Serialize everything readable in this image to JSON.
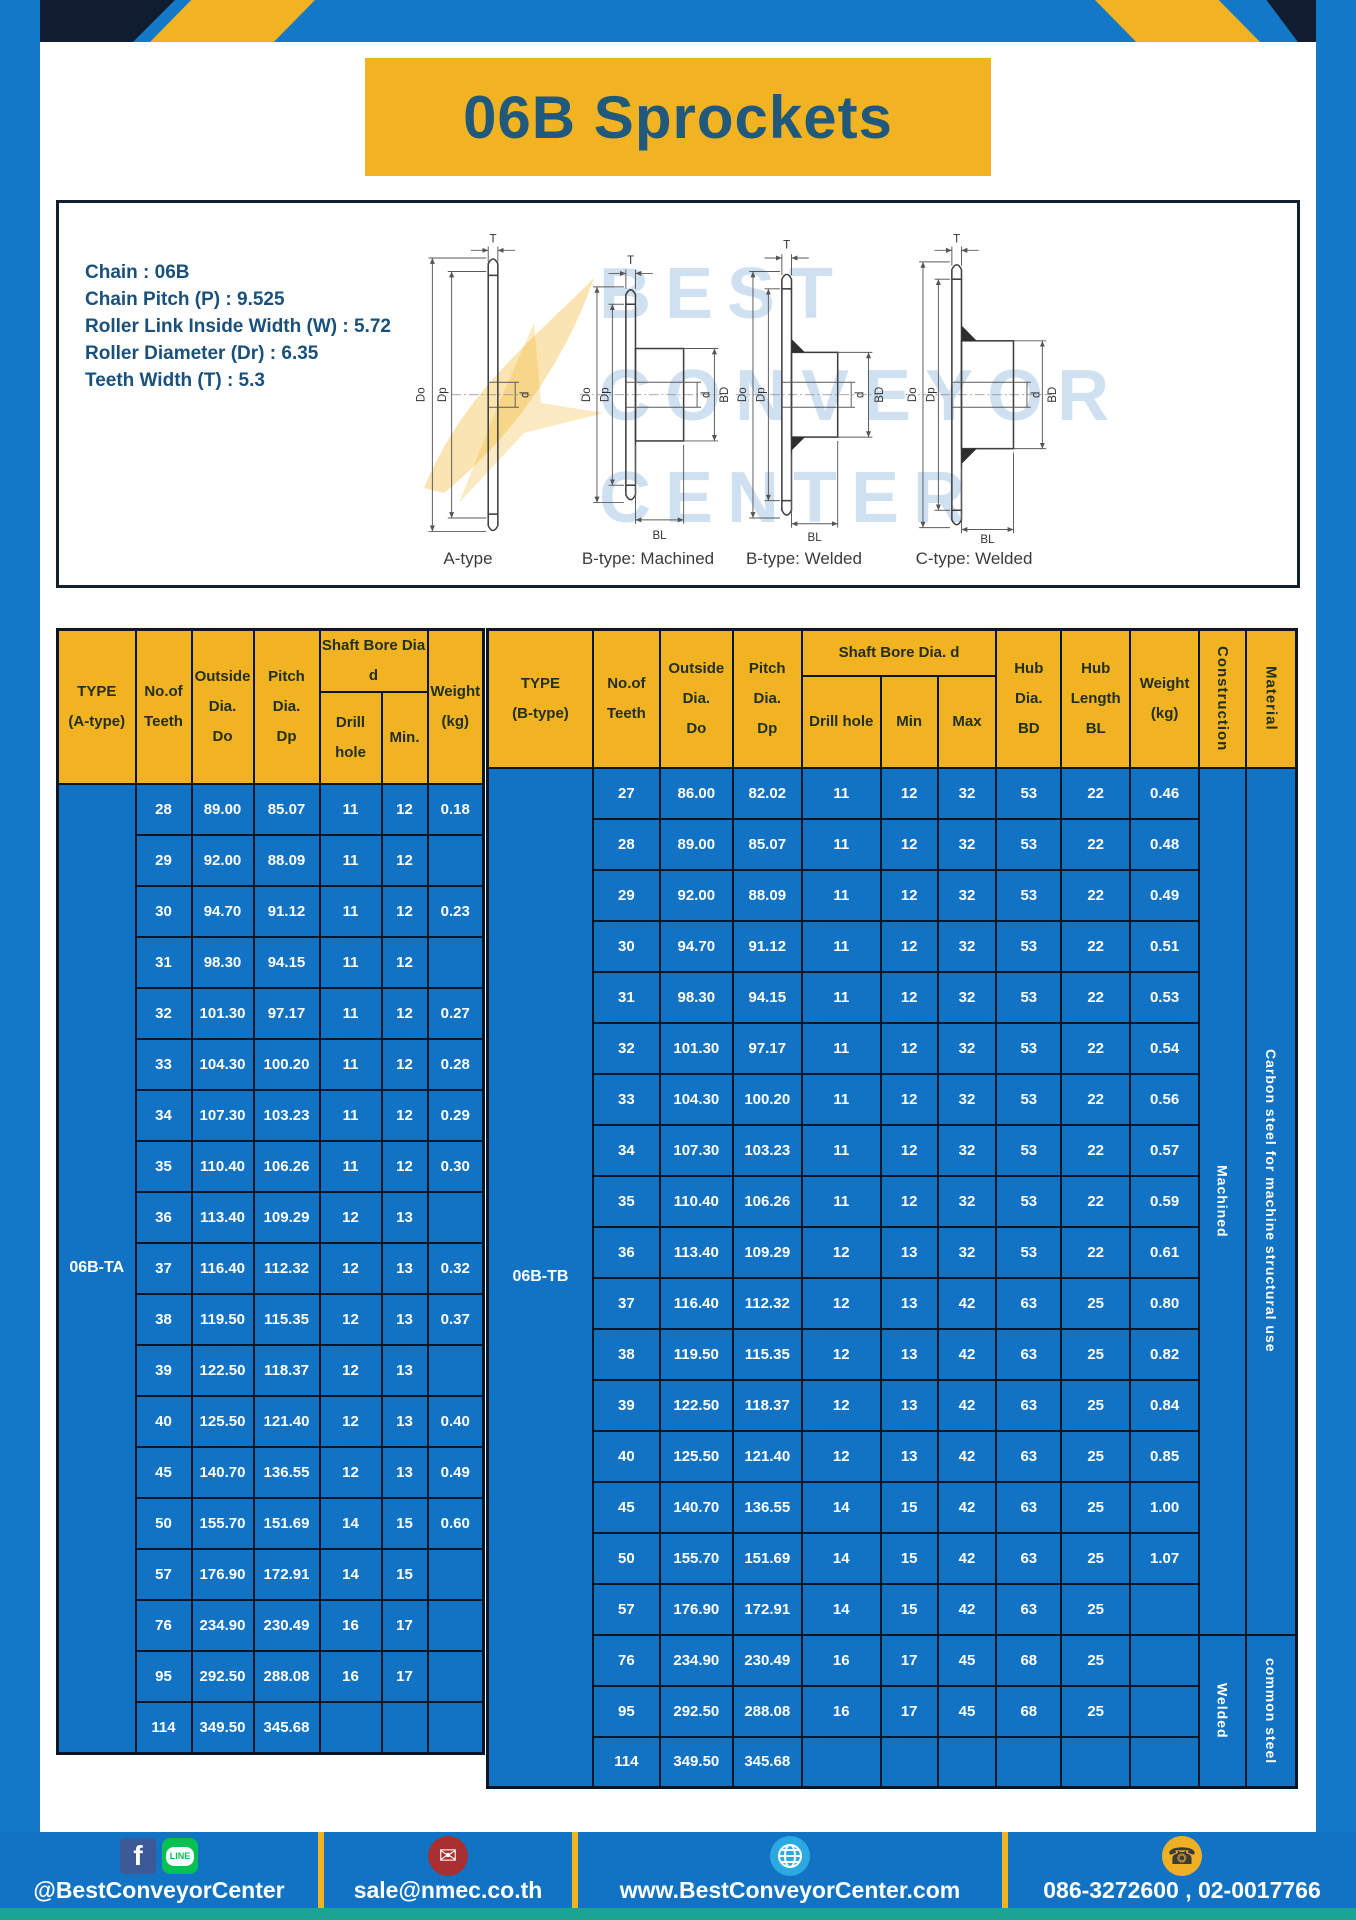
{
  "page": {
    "title": "06B Sprockets"
  },
  "colors": {
    "frame_blue": "#1478c9",
    "cell_blue": "#1273c5",
    "amber": "#f1b322",
    "border_navy": "#0a1626",
    "title_text_blue": "#20597c",
    "teal_strip": "#1ba393",
    "facebook_blue": "#3d5a98",
    "line_green": "#06c152",
    "mail_red": "#a93030",
    "globe_blue": "#2ba9e0"
  },
  "specs": {
    "items": [
      {
        "text": "Chain : 06B"
      },
      {
        "text": "Chain Pitch (P) : 9.525"
      },
      {
        "text": "Roller Link Inside Width (W) : 5.72"
      },
      {
        "text": "Roller Diameter (Dr) : 6.35"
      },
      {
        "text": "Teeth Width (T) : 5.3"
      }
    ]
  },
  "diagrams": {
    "watermark": {
      "line1": "BEST",
      "line2": "CONVEYOR",
      "line3": "CENTER"
    },
    "dims": {
      "T": "T",
      "Do": "Do",
      "Dp": "Dp",
      "d": "d",
      "BD": "BD",
      "BL": "BL"
    },
    "captions": [
      "A-type",
      "B-type: Machined",
      "B-type: Welded",
      "C-type: Welded"
    ]
  },
  "table_a": {
    "headers": {
      "type": "TYPE\n(A-type)",
      "teeth": "No.of\nTeeth",
      "outside": "Outside\nDia.\nDo",
      "pitch": "Pitch Dia.\nDp",
      "shaft": "Shaft Bore Dia d",
      "drill": "Drill hole",
      "min": "Min.",
      "weight": "Weight\n(kg)"
    },
    "type_label": "06B-TA",
    "rows": [
      [
        "28",
        "89.00",
        "85.07",
        "11",
        "12",
        "0.18"
      ],
      [
        "29",
        "92.00",
        "88.09",
        "11",
        "12",
        ""
      ],
      [
        "30",
        "94.70",
        "91.12",
        "11",
        "12",
        "0.23"
      ],
      [
        "31",
        "98.30",
        "94.15",
        "11",
        "12",
        ""
      ],
      [
        "32",
        "101.30",
        "97.17",
        "11",
        "12",
        "0.27"
      ],
      [
        "33",
        "104.30",
        "100.20",
        "11",
        "12",
        "0.28"
      ],
      [
        "34",
        "107.30",
        "103.23",
        "11",
        "12",
        "0.29"
      ],
      [
        "35",
        "110.40",
        "106.26",
        "11",
        "12",
        "0.30"
      ],
      [
        "36",
        "113.40",
        "109.29",
        "12",
        "13",
        ""
      ],
      [
        "37",
        "116.40",
        "112.32",
        "12",
        "13",
        "0.32"
      ],
      [
        "38",
        "119.50",
        "115.35",
        "12",
        "13",
        "0.37"
      ],
      [
        "39",
        "122.50",
        "118.37",
        "12",
        "13",
        ""
      ],
      [
        "40",
        "125.50",
        "121.40",
        "12",
        "13",
        "0.40"
      ],
      [
        "45",
        "140.70",
        "136.55",
        "12",
        "13",
        "0.49"
      ],
      [
        "50",
        "155.70",
        "151.69",
        "14",
        "15",
        "0.60"
      ],
      [
        "57",
        "176.90",
        "172.91",
        "14",
        "15",
        ""
      ],
      [
        "76",
        "234.90",
        "230.49",
        "16",
        "17",
        ""
      ],
      [
        "95",
        "292.50",
        "288.08",
        "16",
        "17",
        ""
      ],
      [
        "114",
        "349.50",
        "345.68",
        "",
        "",
        ""
      ]
    ]
  },
  "table_b": {
    "headers": {
      "type": "TYPE\n(B-type)",
      "teeth": "No.of\nTeeth",
      "outside": "Outside\nDia.\nDo",
      "pitch": "Pitch\nDia.\nDp",
      "shaft": "Shaft Bore Dia. d",
      "drill": "Drill hole",
      "min": "Min",
      "max": "Max",
      "hub_dia": "Hub\nDia.\nBD",
      "hub_len": "Hub\nLength\nBL",
      "weight": "Weight\n(kg)",
      "construction": "Construction",
      "material": "Material"
    },
    "type_label": "06B-TB",
    "rows": [
      [
        "27",
        "86.00",
        "82.02",
        "11",
        "12",
        "32",
        "53",
        "22",
        "0.46"
      ],
      [
        "28",
        "89.00",
        "85.07",
        "11",
        "12",
        "32",
        "53",
        "22",
        "0.48"
      ],
      [
        "29",
        "92.00",
        "88.09",
        "11",
        "12",
        "32",
        "53",
        "22",
        "0.49"
      ],
      [
        "30",
        "94.70",
        "91.12",
        "11",
        "12",
        "32",
        "53",
        "22",
        "0.51"
      ],
      [
        "31",
        "98.30",
        "94.15",
        "11",
        "12",
        "32",
        "53",
        "22",
        "0.53"
      ],
      [
        "32",
        "101.30",
        "97.17",
        "11",
        "12",
        "32",
        "53",
        "22",
        "0.54"
      ],
      [
        "33",
        "104.30",
        "100.20",
        "11",
        "12",
        "32",
        "53",
        "22",
        "0.56"
      ],
      [
        "34",
        "107.30",
        "103.23",
        "11",
        "12",
        "32",
        "53",
        "22",
        "0.57"
      ],
      [
        "35",
        "110.40",
        "106.26",
        "11",
        "12",
        "32",
        "53",
        "22",
        "0.59"
      ],
      [
        "36",
        "113.40",
        "109.29",
        "12",
        "13",
        "32",
        "53",
        "22",
        "0.61"
      ],
      [
        "37",
        "116.40",
        "112.32",
        "12",
        "13",
        "42",
        "63",
        "25",
        "0.80"
      ],
      [
        "38",
        "119.50",
        "115.35",
        "12",
        "13",
        "42",
        "63",
        "25",
        "0.82"
      ],
      [
        "39",
        "122.50",
        "118.37",
        "12",
        "13",
        "42",
        "63",
        "25",
        "0.84"
      ],
      [
        "40",
        "125.50",
        "121.40",
        "12",
        "13",
        "42",
        "63",
        "25",
        "0.85"
      ],
      [
        "45",
        "140.70",
        "136.55",
        "14",
        "15",
        "42",
        "63",
        "25",
        "1.00"
      ],
      [
        "50",
        "155.70",
        "151.69",
        "14",
        "15",
        "42",
        "63",
        "25",
        "1.07"
      ],
      [
        "57",
        "176.90",
        "172.91",
        "14",
        "15",
        "42",
        "63",
        "25",
        ""
      ],
      [
        "76",
        "234.90",
        "230.49",
        "16",
        "17",
        "45",
        "68",
        "25",
        ""
      ],
      [
        "95",
        "292.50",
        "288.08",
        "16",
        "17",
        "45",
        "68",
        "25",
        ""
      ],
      [
        "114",
        "349.50",
        "345.68",
        "",
        "",
        "",
        "",
        "",
        ""
      ]
    ],
    "construction": [
      {
        "label": "Machined",
        "span": 17
      },
      {
        "label": "Welded",
        "span": 3
      }
    ],
    "material": [
      {
        "label": "Carbon steel for machine structural use",
        "span": 17
      },
      {
        "label": "common steel",
        "span": 3
      }
    ]
  },
  "footer": {
    "social": {
      "text": "@BestConveyorCenter",
      "facebook_letter": "f",
      "line_label": "LINE"
    },
    "email": {
      "text": "sale@nmec.co.th",
      "mail_glyph": "✉"
    },
    "website": {
      "text": "www.BestConveyorCenter.com"
    },
    "phone": {
      "text": "086-3272600 , 02-0017766",
      "phone_glyph": "☎"
    }
  }
}
